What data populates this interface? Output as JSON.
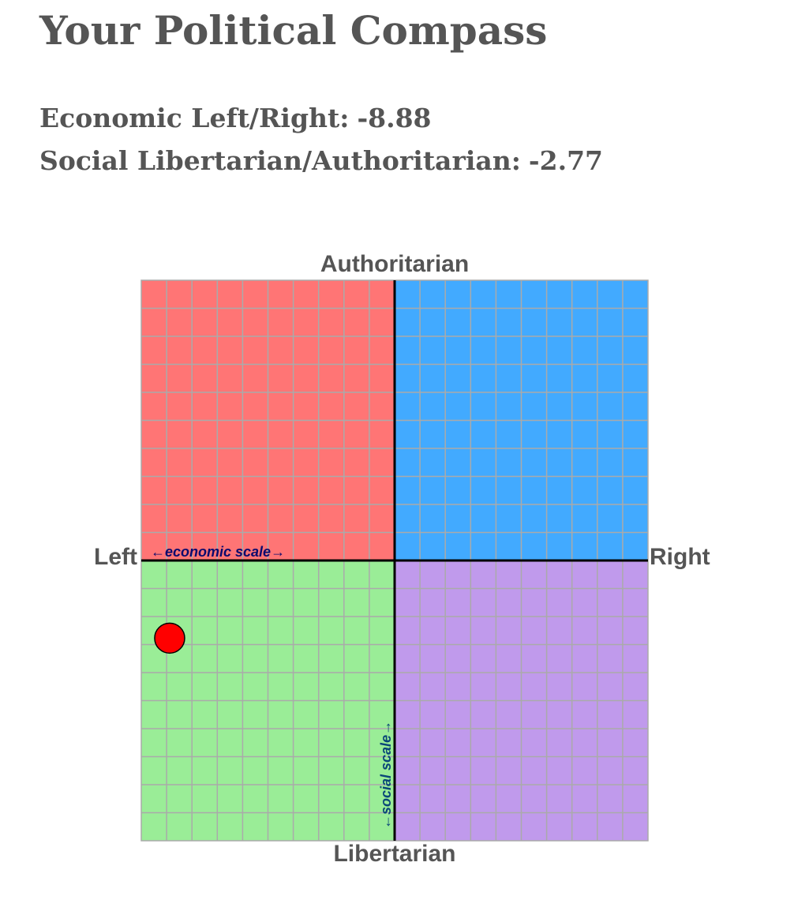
{
  "title": "Your Political Compass",
  "scores": {
    "economic_label": "Economic Left/Right:",
    "economic_value": "-8.88",
    "social_label": "Social Libertarian/Authoritarian:",
    "social_value": "-2.77"
  },
  "chart_data": {
    "type": "scatter",
    "xlim": [
      -10,
      10
    ],
    "ylim": [
      -10,
      10
    ],
    "grid": true,
    "grid_divisions": 20,
    "axis_labels": {
      "top": "Authoritarian",
      "bottom": "Libertarian",
      "left": "Left",
      "right": "Right"
    },
    "scale_labels": {
      "economic": "←economic scale→",
      "social": "←social scale→"
    },
    "quadrant_colors": {
      "authoritarian_left": "#ff7575",
      "authoritarian_right": "#42aaff",
      "libertarian_left": "#9aed97",
      "libertarian_right": "#c09aec"
    },
    "grid_color": "#aaaaaa",
    "axis_color": "#000000",
    "scale_label_colors": {
      "economic": "#0a0a6e",
      "social": "#0a4678"
    },
    "points": [
      {
        "x": -8.88,
        "y": -2.77,
        "color": "#ff0000"
      }
    ]
  }
}
